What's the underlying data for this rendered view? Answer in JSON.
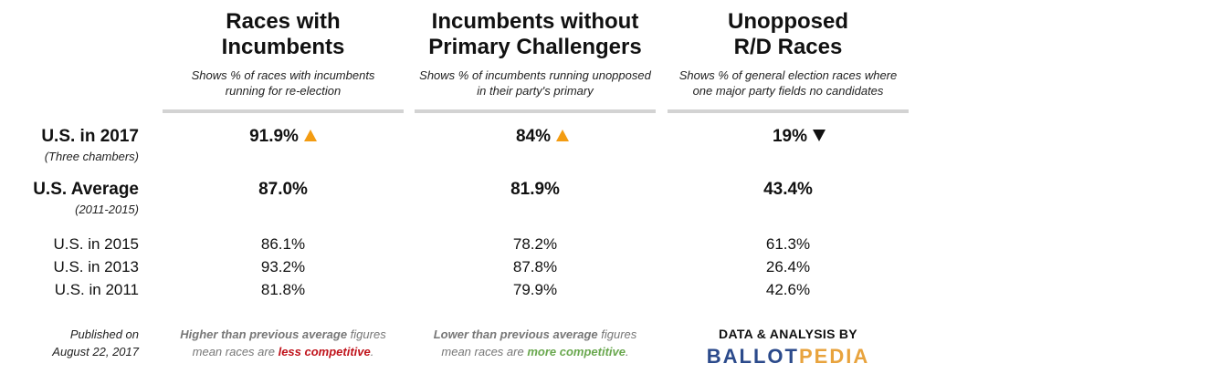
{
  "columns": [
    {
      "title_line1": "Races with",
      "title_line2": "Incumbents",
      "desc_line1": "Shows % of races with incumbents",
      "desc_line2": "running for re-election"
    },
    {
      "title_line1": "Incumbents without",
      "title_line2": "Primary Challengers",
      "desc_line1": "Shows % of incumbents running unopposed",
      "desc_line2": "in their party's primary"
    },
    {
      "title_line1": "Unopposed",
      "title_line2": "R/D Races",
      "desc_line1": "Shows % of general election races where",
      "desc_line2": "one major party fields no candidates"
    }
  ],
  "rows": {
    "current": {
      "label": "U.S. in 2017",
      "sublabel": "(Three chambers)",
      "values": [
        "91.9%",
        "84%",
        "19%"
      ],
      "trends": [
        "up",
        "up",
        "down"
      ]
    },
    "average": {
      "label": "U.S. Average",
      "sublabel": "(2011-2015)",
      "values": [
        "87.0%",
        "81.9%",
        "43.4%"
      ]
    },
    "y2015": {
      "label": "U.S. in 2015",
      "values": [
        "86.1%",
        "78.2%",
        "61.3%"
      ]
    },
    "y2013": {
      "label": "U.S. in 2013",
      "values": [
        "93.2%",
        "87.8%",
        "26.4%"
      ]
    },
    "y2011": {
      "label": "U.S. in 2011",
      "values": [
        "81.8%",
        "79.9%",
        "42.6%"
      ]
    }
  },
  "footer": {
    "published_line1": "Published on",
    "published_line2": "August 22, 2017",
    "note_higher": {
      "bold": "Higher than previous average",
      "rest1": " figures",
      "line2_pre": "mean races are ",
      "emph": "less competitive",
      "line2_post": "."
    },
    "note_lower": {
      "bold": "Lower than previous average",
      "rest1": " figures",
      "line2_pre": "mean races are ",
      "emph": "more competitive",
      "line2_post": "."
    },
    "credit": "DATA & ANALYSIS BY",
    "logo_part1": "BALLOT",
    "logo_part2": "PEDIA"
  },
  "colors": {
    "up_arrow": "#f39c12",
    "down_arrow": "#111111",
    "less_competitive": "#c0141c",
    "more_competitive": "#6aa84f",
    "logo_blue": "#2b4a8b",
    "logo_gold": "#e8a33d",
    "rule": "#d3d3d3"
  }
}
